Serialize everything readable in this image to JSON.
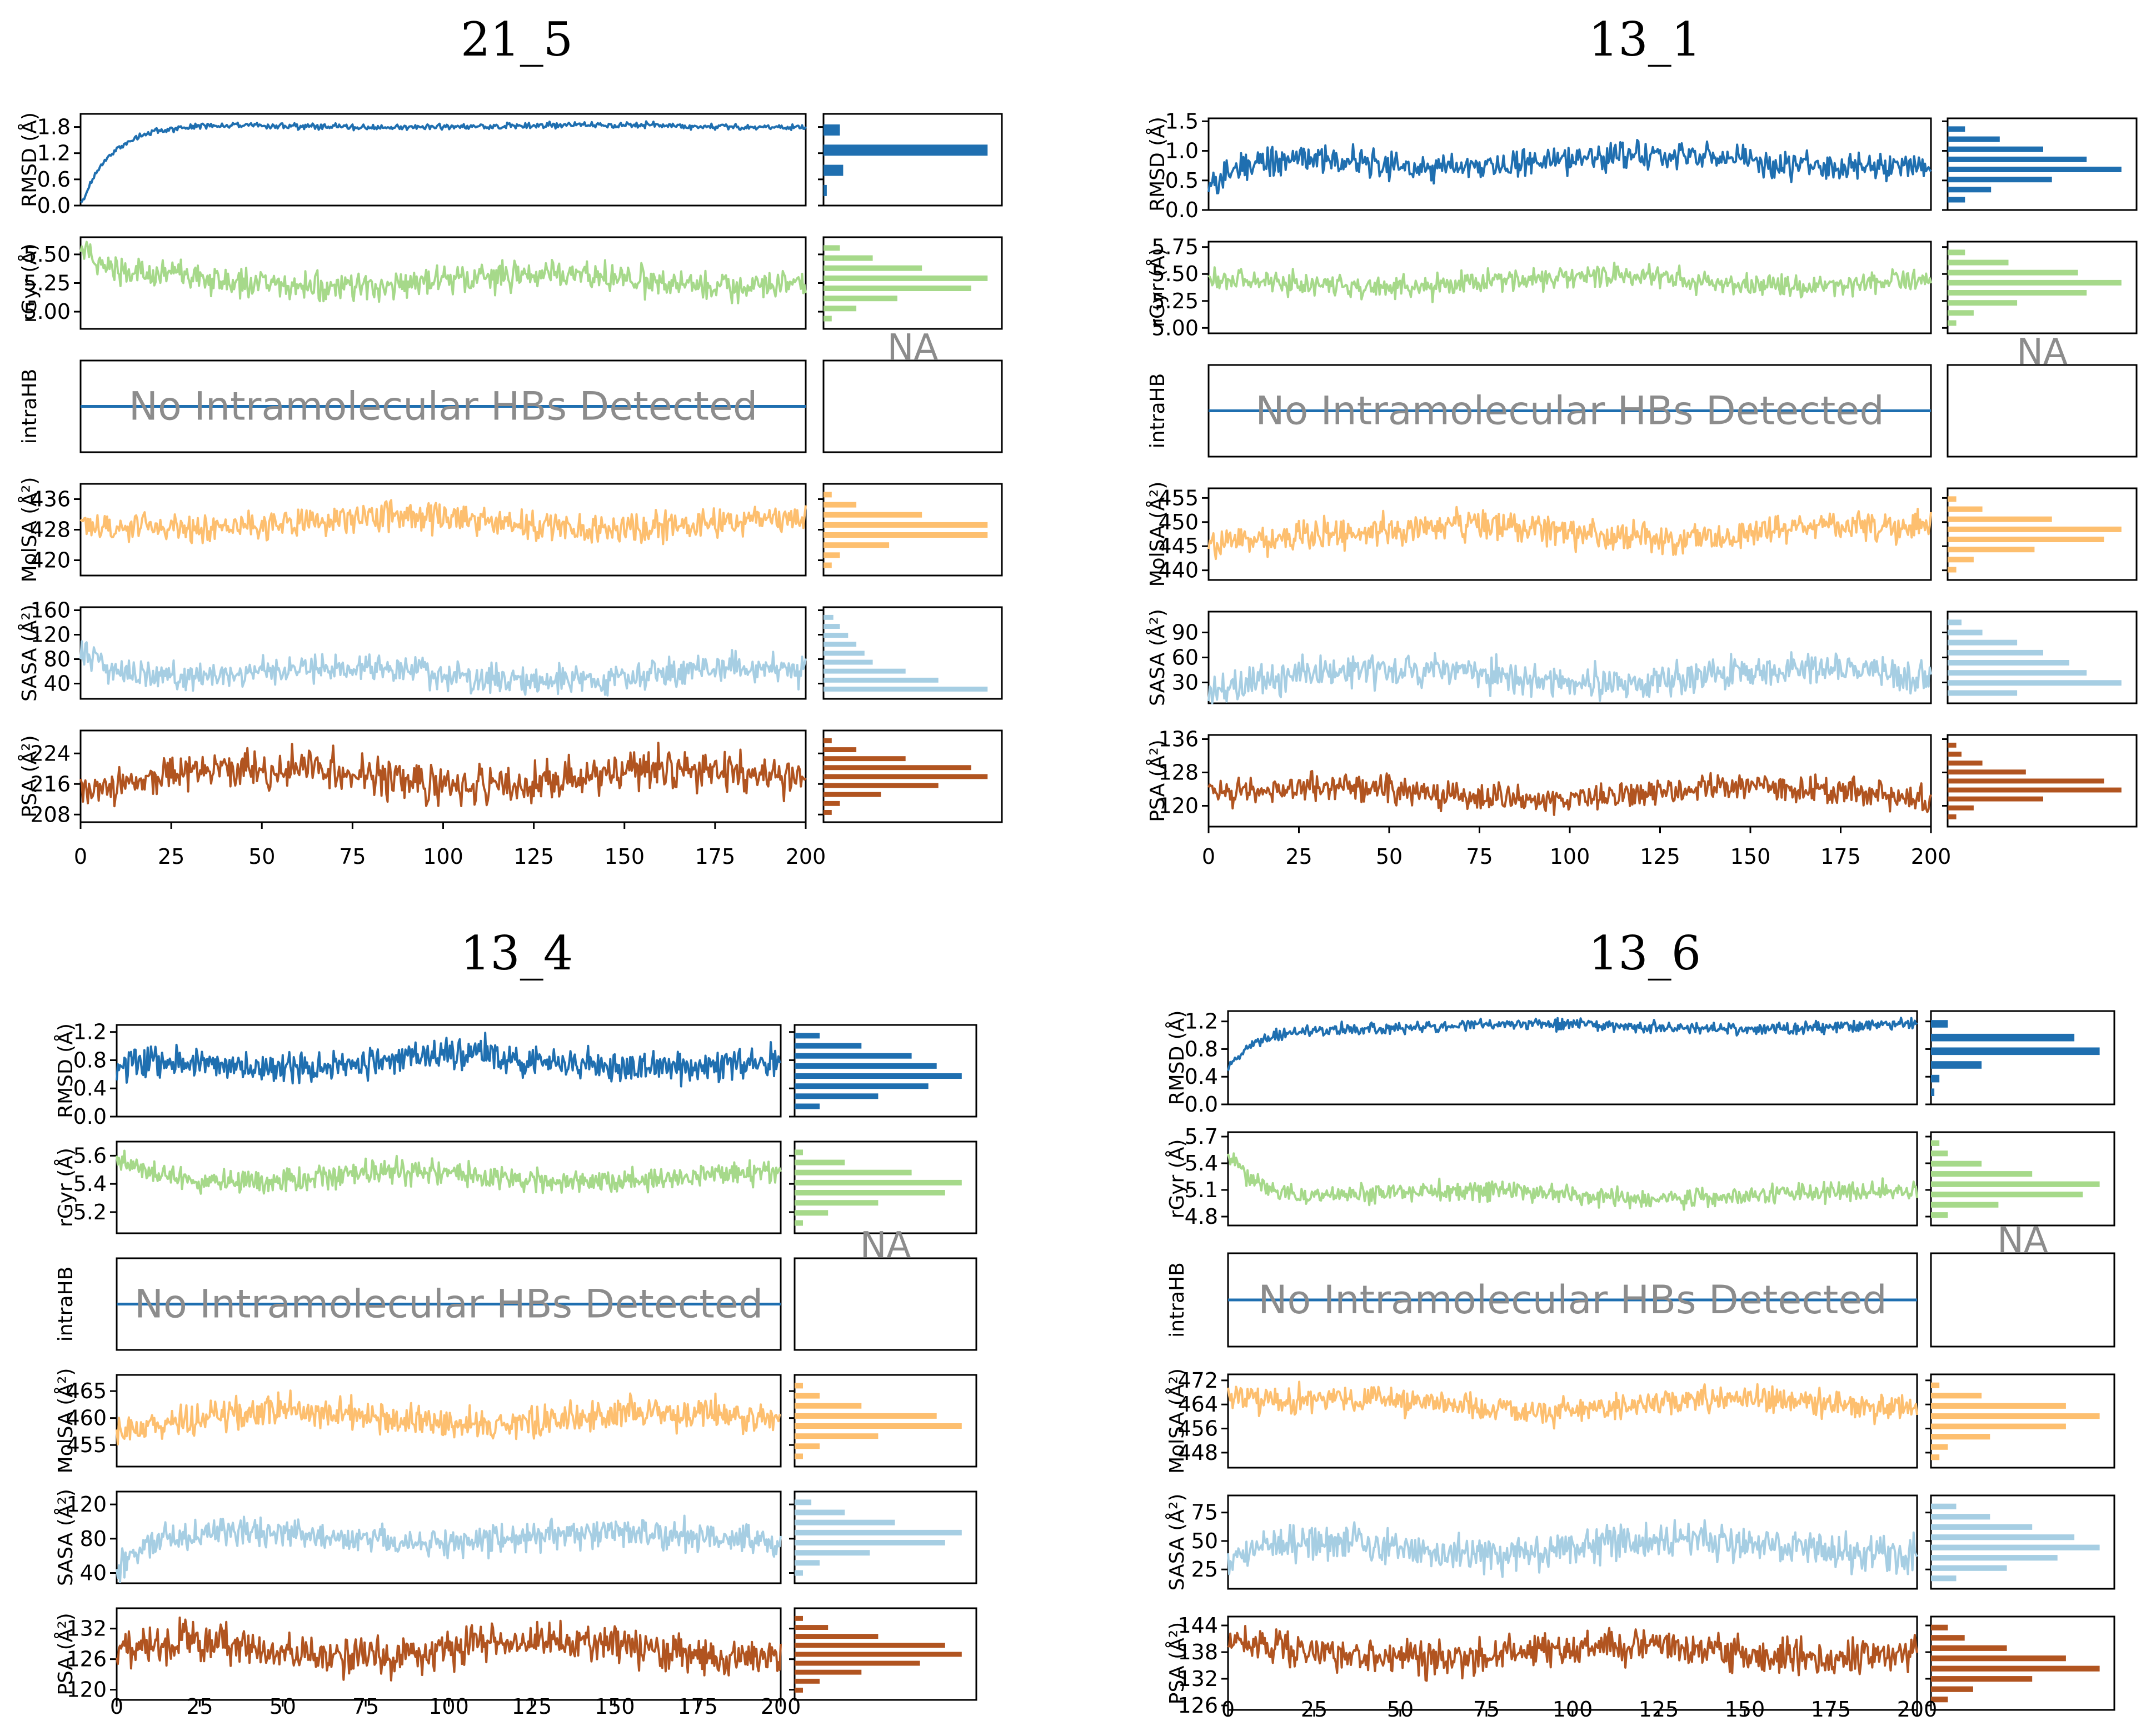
{
  "na_label": "NA",
  "no_hb_label": "No Intramolecular HBs Detected",
  "xaxis": {
    "min": 0,
    "max": 200,
    "ticks": [
      0,
      25,
      50,
      75,
      100,
      125,
      150,
      175,
      200
    ]
  },
  "colors": {
    "RMSD": "#1f6fb0",
    "rGyr": "#a6d98a",
    "intraHB": "#1f6fb0",
    "MolSA": "#fdbf6f",
    "SASA": "#a6cee3",
    "PSA": "#b15420"
  },
  "chart_data": [
    {
      "type": "line",
      "title": "21_5",
      "xlabel": "",
      "x_ticks": [
        "0",
        "25",
        "50",
        "75",
        "100",
        "125",
        "150",
        "175",
        "200"
      ],
      "panels": [
        {
          "name": "RMSD",
          "ylabel": "RMSD (Å)",
          "ylim": [
            0.0,
            2.1
          ],
          "yticks": [
            0.0,
            0.6,
            1.2,
            1.8
          ],
          "ytick_labels": [
            "0.0",
            "0.6",
            "1.2",
            "1.8"
          ],
          "mean": 1.82,
          "amp": 0.05,
          "start": 0.0,
          "hist": [
            0.02,
            0.12,
            1.0,
            0.1
          ]
        },
        {
          "name": "rGyr",
          "ylabel": "rGyr (Å)",
          "ylim": [
            4.85,
            5.65
          ],
          "yticks": [
            5.0,
            5.25,
            5.5
          ],
          "ytick_labels": [
            "5.00",
            "5.25",
            "5.50"
          ],
          "mean": 5.27,
          "amp": 0.09,
          "start": 5.5,
          "hist": [
            0.05,
            0.2,
            0.45,
            0.9,
            1.0,
            0.6,
            0.3,
            0.1
          ]
        },
        {
          "name": "intraHB",
          "ylabel": "intraHB",
          "empty": true
        },
        {
          "name": "MolSA",
          "ylabel": "MolSA (Å²)",
          "ylim": [
            416,
            440
          ],
          "yticks": [
            420,
            428,
            436
          ],
          "ytick_labels": [
            "420",
            "428",
            "436"
          ],
          "mean": 430,
          "amp": 2.8,
          "start": 429,
          "hist": [
            0.05,
            0.1,
            0.4,
            1.0,
            1.0,
            0.6,
            0.2,
            0.05
          ]
        },
        {
          "name": "SASA",
          "ylabel": "SASA (Å²)",
          "ylim": [
            15,
            165
          ],
          "yticks": [
            40,
            80,
            120,
            160
          ],
          "ytick_labels": [
            "40",
            "80",
            "120",
            "160"
          ],
          "mean": 55,
          "amp": 16,
          "start": 110,
          "hist": [
            1.0,
            0.7,
            0.5,
            0.3,
            0.25,
            0.2,
            0.15,
            0.1,
            0.06
          ]
        },
        {
          "name": "PSA",
          "ylabel": "PSA (Å²)",
          "ylim": [
            206,
            230
          ],
          "yticks": [
            208,
            216,
            224
          ],
          "ytick_labels": [
            "208",
            "216",
            "224"
          ],
          "mean": 218,
          "amp": 3.5,
          "start": 216,
          "hist": [
            0.05,
            0.1,
            0.35,
            0.7,
            1.0,
            0.9,
            0.5,
            0.2,
            0.05
          ]
        }
      ]
    },
    {
      "type": "line",
      "title": "13_1",
      "xlabel": "",
      "x_ticks": [
        "0",
        "25",
        "50",
        "75",
        "100",
        "125",
        "150",
        "175",
        "200"
      ],
      "panels": [
        {
          "name": "RMSD",
          "ylabel": "RMSD (Å)",
          "ylim": [
            0.0,
            1.55
          ],
          "yticks": [
            0.0,
            0.5,
            1.0,
            1.5
          ],
          "ytick_labels": [
            "0.0",
            "0.5",
            "1.0",
            "1.5"
          ],
          "mean": 0.82,
          "amp": 0.17,
          "start": 0.3,
          "hist": [
            0.1,
            0.25,
            0.6,
            1.0,
            0.8,
            0.55,
            0.3,
            0.1
          ]
        },
        {
          "name": "rGyr",
          "ylabel": "rGyr (Å)",
          "ylim": [
            4.95,
            5.8
          ],
          "yticks": [
            5.0,
            5.25,
            5.5,
            5.75
          ],
          "ytick_labels": [
            "5.00",
            "5.25",
            "5.50",
            "5.75"
          ],
          "mean": 5.43,
          "amp": 0.08,
          "start": 5.4,
          "hist": [
            0.05,
            0.15,
            0.4,
            0.8,
            1.0,
            0.75,
            0.35,
            0.1
          ]
        },
        {
          "name": "intraHB",
          "ylabel": "intraHB",
          "empty": true
        },
        {
          "name": "MolSA",
          "ylabel": "MolSA (Å²)",
          "ylim": [
            438,
            457
          ],
          "yticks": [
            440,
            445,
            450,
            455
          ],
          "ytick_labels": [
            "440",
            "445",
            "450",
            "455"
          ],
          "mean": 448,
          "amp": 2.2,
          "start": 446,
          "hist": [
            0.05,
            0.15,
            0.5,
            0.9,
            1.0,
            0.6,
            0.2,
            0.05
          ]
        },
        {
          "name": "SASA",
          "ylabel": "SASA (Å²)",
          "ylim": [
            5,
            115
          ],
          "yticks": [
            30,
            60,
            90
          ],
          "ytick_labels": [
            "30",
            "60",
            "90"
          ],
          "mean": 38,
          "amp": 14,
          "start": 25,
          "hist": [
            0.4,
            1.0,
            0.8,
            0.7,
            0.55,
            0.4,
            0.2,
            0.08
          ]
        },
        {
          "name": "PSA",
          "ylabel": "PSA (Å²)",
          "ylim": [
            115,
            137
          ],
          "yticks": [
            120,
            128,
            136
          ],
          "ytick_labels": [
            "120",
            "128",
            "136"
          ],
          "mean": 123,
          "amp": 2.5,
          "start": 124,
          "hist": [
            0.05,
            0.15,
            0.55,
            1.0,
            0.9,
            0.45,
            0.2,
            0.08,
            0.05
          ]
        }
      ]
    },
    {
      "type": "line",
      "title": "13_4",
      "xlabel": "",
      "x_ticks": [
        "0",
        "25",
        "50",
        "75",
        "100",
        "125",
        "150",
        "175",
        "200"
      ],
      "panels": [
        {
          "name": "RMSD",
          "ylabel": "RMSD (Å)",
          "ylim": [
            0.0,
            1.3
          ],
          "yticks": [
            0.0,
            0.4,
            0.8,
            1.2
          ],
          "ytick_labels": [
            "0.0",
            "0.4",
            "0.8",
            "1.2"
          ],
          "mean": 0.78,
          "amp": 0.16,
          "start": 0.6,
          "hist": [
            0.15,
            0.5,
            0.8,
            1.0,
            0.85,
            0.7,
            0.4,
            0.15
          ]
        },
        {
          "name": "rGyr",
          "ylabel": "rGyr (Å)",
          "ylim": [
            5.05,
            5.7
          ],
          "yticks": [
            5.2,
            5.4,
            5.6
          ],
          "ytick_labels": [
            "5.2",
            "5.4",
            "5.6"
          ],
          "mean": 5.45,
          "amp": 0.06,
          "start": 5.6,
          "hist": [
            0.05,
            0.2,
            0.5,
            0.9,
            1.0,
            0.7,
            0.3,
            0.05
          ]
        },
        {
          "name": "intraHB",
          "ylabel": "intraHB",
          "empty": true
        },
        {
          "name": "MolSA",
          "ylabel": "MolSA (Å²)",
          "ylim": [
            451,
            468
          ],
          "yticks": [
            455,
            460,
            465
          ],
          "ytick_labels": [
            "455",
            "460",
            "465"
          ],
          "mean": 460,
          "amp": 2.0,
          "start": 458,
          "hist": [
            0.05,
            0.15,
            0.5,
            1.0,
            0.85,
            0.4,
            0.15,
            0.05
          ]
        },
        {
          "name": "SASA",
          "ylabel": "SASA (Å²)",
          "ylim": [
            28,
            135
          ],
          "yticks": [
            40,
            80,
            120
          ],
          "ytick_labels": [
            "40",
            "80",
            "120"
          ],
          "mean": 82,
          "amp": 12,
          "start": 45,
          "hist": [
            0.05,
            0.15,
            0.45,
            0.9,
            1.0,
            0.6,
            0.3,
            0.1
          ]
        },
        {
          "name": "PSA",
          "ylabel": "PSA (Å²)",
          "ylim": [
            118,
            136
          ],
          "yticks": [
            120,
            126,
            132
          ],
          "ytick_labels": [
            "120",
            "126",
            "132"
          ],
          "mean": 128,
          "amp": 2.6,
          "start": 126,
          "hist": [
            0.05,
            0.15,
            0.4,
            0.75,
            1.0,
            0.9,
            0.5,
            0.2,
            0.05
          ]
        }
      ]
    },
    {
      "type": "line",
      "title": "13_6",
      "xlabel": "",
      "x_ticks": [
        "0",
        "25",
        "50",
        "75",
        "100",
        "125",
        "150",
        "175",
        "200"
      ],
      "panels": [
        {
          "name": "RMSD",
          "ylabel": "RMSD (Å)",
          "ylim": [
            0.0,
            1.35
          ],
          "yticks": [
            0.0,
            0.4,
            0.8,
            1.2
          ],
          "ytick_labels": [
            "0.0",
            "0.4",
            "0.8",
            "1.2"
          ],
          "mean": 1.13,
          "amp": 0.06,
          "start": 0.5,
          "hist": [
            0.02,
            0.05,
            0.3,
            1.0,
            0.85,
            0.1
          ]
        },
        {
          "name": "rGyr",
          "ylabel": "rGyr (Å)",
          "ylim": [
            4.7,
            5.75
          ],
          "yticks": [
            4.8,
            5.1,
            5.4,
            5.7
          ],
          "ytick_labels": [
            "4.8",
            "5.1",
            "5.4",
            "5.7"
          ],
          "mean": 5.05,
          "amp": 0.08,
          "start": 5.6,
          "hist": [
            0.1,
            0.4,
            0.9,
            1.0,
            0.6,
            0.3,
            0.1,
            0.05
          ]
        },
        {
          "name": "intraHB",
          "ylabel": "intraHB",
          "empty": true
        },
        {
          "name": "MolSA",
          "ylabel": "MolSA (Å²)",
          "ylim": [
            443,
            474
          ],
          "yticks": [
            448,
            456,
            464,
            472
          ],
          "ytick_labels": [
            "448",
            "456",
            "464",
            "472"
          ],
          "mean": 464,
          "amp": 3.2,
          "start": 466,
          "hist": [
            0.05,
            0.1,
            0.35,
            0.8,
            1.0,
            0.8,
            0.3,
            0.05
          ]
        },
        {
          "name": "SASA",
          "ylabel": "SASA (Å²)",
          "ylim": [
            8,
            90
          ],
          "yticks": [
            25,
            50,
            75
          ],
          "ytick_labels": [
            "25",
            "50",
            "75"
          ],
          "mean": 45,
          "amp": 11,
          "start": 25,
          "hist": [
            0.15,
            0.45,
            0.75,
            1.0,
            0.85,
            0.6,
            0.35,
            0.15
          ]
        },
        {
          "name": "PSA",
          "ylabel": "PSA (Å²)",
          "ylim": [
            125,
            146
          ],
          "yticks": [
            126,
            132,
            138,
            144
          ],
          "ytick_labels": [
            "126",
            "132",
            "138",
            "144"
          ],
          "mean": 138,
          "amp": 2.8,
          "start": 140,
          "hist": [
            0.1,
            0.25,
            0.6,
            1.0,
            0.8,
            0.45,
            0.2,
            0.1
          ]
        }
      ]
    }
  ]
}
